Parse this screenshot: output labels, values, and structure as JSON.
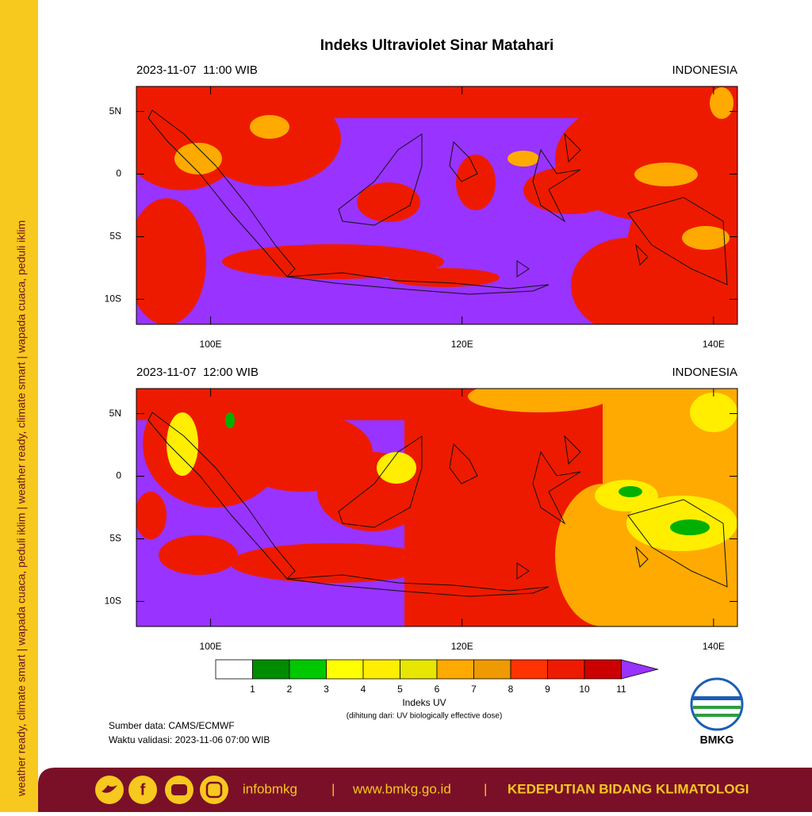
{
  "side_text": "weather ready, climate smart | wapada cuaca, peduli iklim | weather ready, climate smart | wapada cuaca, peduli iklim",
  "title": "Indeks Ultraviolet Sinar Matahari",
  "maps": [
    {
      "time": "2023-11-07  11:00 WIB",
      "region": "INDONESIA"
    },
    {
      "time": "2023-11-07  12:00 WIB",
      "region": "INDONESIA"
    }
  ],
  "axes": {
    "lonlim": [
      94.1,
      141.9
    ],
    "latlim": [
      -12,
      7
    ],
    "lon_ticks": [
      {
        "value": 100,
        "label": "100E"
      },
      {
        "value": 120,
        "label": "120E"
      },
      {
        "value": 140,
        "label": "140E"
      }
    ],
    "lat_ticks": [
      {
        "value": 5,
        "label": "5N"
      },
      0,
      {
        "value": -5,
        "label": "5S"
      },
      {
        "value": -10,
        "label": "10S"
      }
    ]
  },
  "colorbar": {
    "title": "Indeks UV",
    "subtitle": "(dihitung dari: UV biologically effective dose)",
    "levels": [
      1,
      2,
      3,
      4,
      5,
      6,
      7,
      8,
      9,
      10,
      11
    ],
    "colors": [
      "#ffffff",
      "#008c00",
      "#00c800",
      "#ffff00",
      "#ffee00",
      "#e6e600",
      "#ffaa00",
      "#ee9a00",
      "#ff3300",
      "#ee1a00",
      "#cc0000",
      "#9933ff"
    ]
  },
  "source": "Sumber data: CAMS/ECMWF",
  "validity": "Waktu validasi: 2023-11-06 07:00 WIB",
  "logo": "BMKG",
  "footer": {
    "handle": "infobmkg",
    "separator": "|",
    "website": "www.bmkg.go.id",
    "department": "KEDEPUTIAN BIDANG KLIMATOLOGI"
  }
}
